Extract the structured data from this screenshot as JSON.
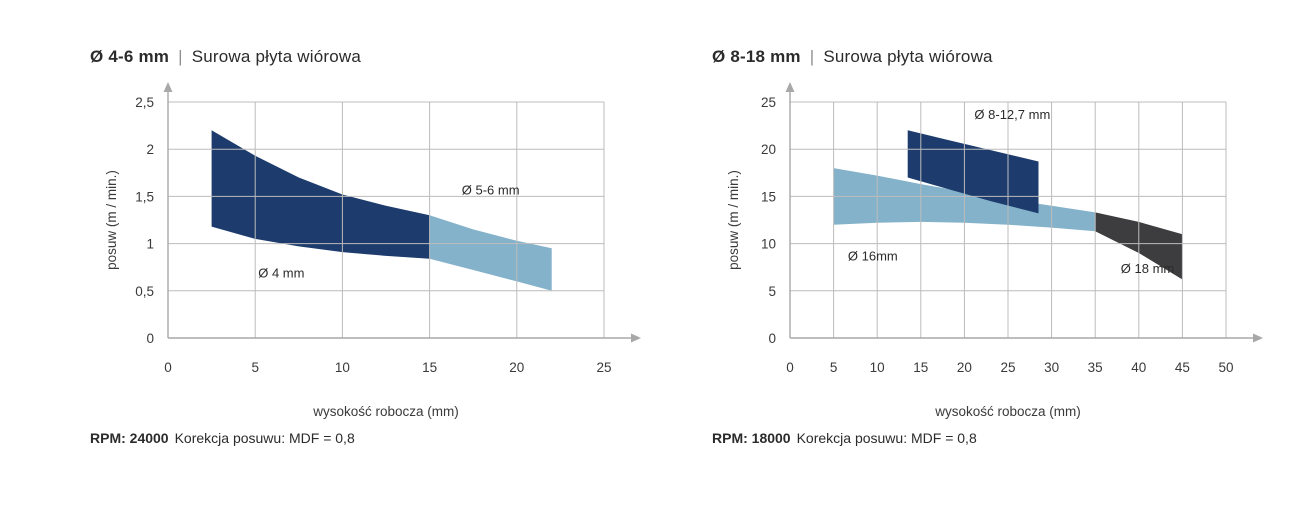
{
  "palette": {
    "grid": "#bcbcbc",
    "axis": "#a8a8a8",
    "text": "#3a3a3a",
    "navy": "#1d3c6d",
    "light_blue": "#84b2ca",
    "dark_gray": "#3d3d3f"
  },
  "chart_data": [
    {
      "type": "area",
      "title_bold": "Ø 4-6 mm",
      "title_separator": "|",
      "title_rest": "Surowa płyta wiórowa",
      "footer_bold": "RPM: 24000",
      "footer_rest": "Korekcja posuwu: MDF = 0,8",
      "xlabel": "wysokość robocza (mm)",
      "ylabel": "posuw (m / min.)",
      "xlim": [
        0,
        25
      ],
      "ylim": [
        0,
        2.5
      ],
      "xticks": [
        0,
        5,
        10,
        15,
        20,
        25
      ],
      "yticks": [
        0,
        0.5,
        1,
        1.5,
        2,
        2.5
      ],
      "xtick_labels": [
        "0",
        "5",
        "10",
        "15",
        "20",
        "25"
      ],
      "ytick_labels": [
        "0",
        "0,5",
        "1",
        "1,5",
        "2",
        "2,5"
      ],
      "grid": true,
      "bands": [
        {
          "name": "Ø 4 mm",
          "color": "#1d3c6d",
          "x": [
            2.5,
            5,
            7.5,
            10,
            12.5,
            15
          ],
          "upper": [
            2.2,
            1.93,
            1.7,
            1.52,
            1.4,
            1.3
          ],
          "lower": [
            1.18,
            1.05,
            0.97,
            0.91,
            0.87,
            0.84
          ],
          "label": {
            "x": 6.5,
            "y": 0.64
          }
        },
        {
          "name": "Ø 5-6 mm",
          "color": "#84b2ca",
          "x": [
            15,
            17.5,
            20,
            22
          ],
          "upper": [
            1.3,
            1.15,
            1.03,
            0.95
          ],
          "lower": [
            0.84,
            0.72,
            0.6,
            0.5
          ],
          "label": {
            "x": 18.5,
            "y": 1.52
          }
        }
      ]
    },
    {
      "type": "area",
      "title_bold": "Ø 8-18 mm",
      "title_separator": "|",
      "title_rest": "Surowa płyta wiórowa",
      "footer_bold": "RPM: 18000",
      "footer_rest": "Korekcja posuwu: MDF = 0,8",
      "xlabel": "wysokość robocza (mm)",
      "ylabel": "posuw (m / min.)",
      "xlim": [
        0,
        50
      ],
      "ylim": [
        0,
        25
      ],
      "xticks": [
        0,
        5,
        10,
        15,
        20,
        25,
        30,
        35,
        40,
        45,
        50
      ],
      "yticks": [
        0,
        5,
        10,
        15,
        20,
        25
      ],
      "xtick_labels": [
        "0",
        "5",
        "10",
        "15",
        "20",
        "25",
        "30",
        "35",
        "40",
        "45",
        "50"
      ],
      "ytick_labels": [
        "0",
        "5",
        "10",
        "15",
        "20",
        "25"
      ],
      "grid": true,
      "bands": [
        {
          "name": "Ø 16mm",
          "color": "#84b2ca",
          "x": [
            5,
            10,
            15,
            20,
            25,
            30,
            35
          ],
          "upper": [
            18,
            17.2,
            16.3,
            15.5,
            14.7,
            14,
            13.3
          ],
          "lower": [
            12,
            12.2,
            12.3,
            12.2,
            12,
            11.7,
            11.3
          ],
          "label": {
            "x": 9.5,
            "y": 8.2
          }
        },
        {
          "name": "Ø 8-12,7 mm",
          "color": "#1d3c6d",
          "x": [
            13.5,
            18,
            23,
            28.5
          ],
          "upper": [
            22,
            21,
            19.9,
            18.7
          ],
          "lower": [
            17,
            15.8,
            14.5,
            13.2
          ],
          "label": {
            "x": 25.5,
            "y": 23.2
          }
        },
        {
          "name": "Ø 18 mm",
          "color": "#3d3d3f",
          "x": [
            35,
            40,
            45
          ],
          "upper": [
            13.3,
            12.3,
            11
          ],
          "lower": [
            11.3,
            9,
            6.2
          ],
          "label": {
            "x": 41,
            "y": 6.9
          }
        }
      ]
    }
  ]
}
